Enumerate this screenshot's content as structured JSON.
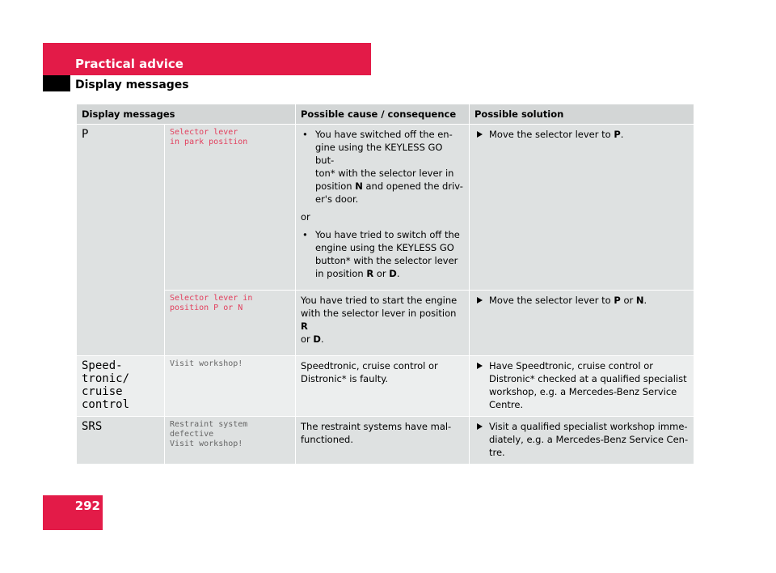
{
  "header": {
    "section": "Practical advice",
    "subsection": "Display messages"
  },
  "table": {
    "columns": [
      "Display messages",
      "Possible cause / consequence",
      "Possible solution"
    ],
    "rows": [
      {
        "display": [
          "P"
        ],
        "entries": [
          {
            "message": [
              "Selector lever",
              "in park position"
            ],
            "message_color": "#e2405e",
            "cause": [
              {
                "bullet": true,
                "lines": [
                  [
                    "You have switched off the en-"
                  ],
                  [
                    "gine using the KEYLESS GO but-"
                  ],
                  [
                    "ton* with the selector lever in"
                  ],
                  [
                    "position ",
                    {
                      "text": "N",
                      "bold": true
                    },
                    " and opened the driv-"
                  ],
                  [
                    "er's door."
                  ]
                ]
              },
              {
                "bullet": false,
                "lines": [
                  [
                    "or"
                  ]
                ]
              },
              {
                "bullet": true,
                "lines": [
                  [
                    "You have tried to switch off the"
                  ],
                  [
                    "engine using the KEYLESS GO"
                  ],
                  [
                    "button* with the selector lever"
                  ],
                  [
                    "in position ",
                    {
                      "text": "R",
                      "bold": true
                    },
                    " or ",
                    {
                      "text": "D",
                      "bold": true
                    },
                    "."
                  ]
                ]
              }
            ],
            "solution": [
              [
                "Move the selector lever to ",
                {
                  "text": "P",
                  "bold": true
                },
                "."
              ]
            ]
          },
          {
            "message": [
              "Selector lever in",
              "position P or N"
            ],
            "message_color": "#e2405e",
            "cause": [
              {
                "bullet": false,
                "lines": [
                  [
                    "You have tried to start the engine"
                  ],
                  [
                    "with the selector lever in position ",
                    {
                      "text": "R",
                      "bold": true
                    }
                  ],
                  [
                    "or ",
                    {
                      "text": "D",
                      "bold": true
                    },
                    "."
                  ]
                ]
              }
            ],
            "solution": [
              [
                "Move the selector lever to ",
                {
                  "text": "P",
                  "bold": true
                },
                " or ",
                {
                  "text": "N",
                  "bold": true
                },
                "."
              ]
            ]
          }
        ]
      },
      {
        "display": [
          "Speed-",
          "tronic/",
          "cruise",
          "control"
        ],
        "entries": [
          {
            "message": [
              "Visit workshop!"
            ],
            "message_color": "#666666",
            "cause": [
              {
                "bullet": false,
                "lines": [
                  [
                    "Speedtronic, cruise control or"
                  ],
                  [
                    "Distronic* is faulty."
                  ]
                ]
              }
            ],
            "solution": [
              [
                "Have Speedtronic, cruise control or"
              ],
              [
                "Distronic* checked at a qualified specialist"
              ],
              [
                "workshop, e.g. a Mercedes-Benz Service"
              ],
              [
                "Centre."
              ]
            ]
          }
        ]
      },
      {
        "display": [
          "SRS"
        ],
        "entries": [
          {
            "message": [
              "Restraint system",
              "defective",
              "Visit workshop!"
            ],
            "message_color": "#666666",
            "cause": [
              {
                "bullet": false,
                "lines": [
                  [
                    "The restraint systems have mal-"
                  ],
                  [
                    "functioned."
                  ]
                ]
              }
            ],
            "solution": [
              [
                "Visit a qualified specialist workshop imme-"
              ],
              [
                "diately, e.g. a Mercedes-Benz Service Cen-"
              ],
              [
                "tre."
              ]
            ]
          }
        ]
      }
    ]
  },
  "page_number": "292"
}
